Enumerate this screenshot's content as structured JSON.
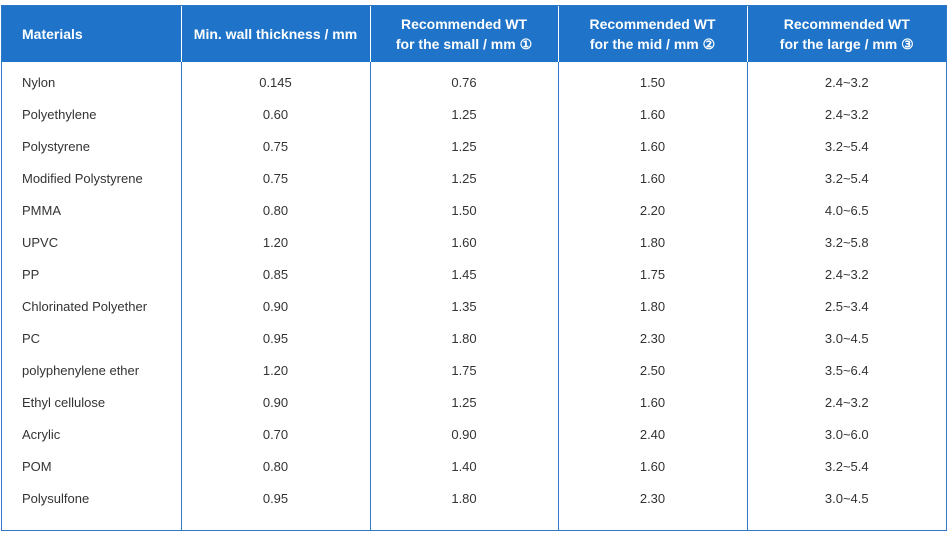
{
  "table": {
    "headers": [
      [
        "Materials"
      ],
      [
        "Min. wall thickness / mm"
      ],
      [
        "Recommended WT",
        "for the small / mm ①"
      ],
      [
        "Recommended WT",
        "for the mid / mm ②"
      ],
      [
        "Recommended WT",
        "for the large / mm ③"
      ]
    ],
    "rows": [
      [
        "Nylon",
        "0.145",
        "0.76",
        "1.50",
        "2.4~3.2"
      ],
      [
        "Polyethylene",
        "0.60",
        "1.25",
        "1.60",
        "2.4~3.2"
      ],
      [
        "Polystyrene",
        "0.75",
        "1.25",
        "1.60",
        "3.2~5.4"
      ],
      [
        "Modified Polystyrene",
        "0.75",
        "1.25",
        "1.60",
        "3.2~5.4"
      ],
      [
        "PMMA",
        "0.80",
        "1.50",
        "2.20",
        "4.0~6.5"
      ],
      [
        "UPVC",
        "1.20",
        "1.60",
        "1.80",
        "3.2~5.8"
      ],
      [
        "PP",
        "0.85",
        "1.45",
        "1.75",
        "2.4~3.2"
      ],
      [
        "Chlorinated Polyether",
        "0.90",
        "1.35",
        "1.80",
        "2.5~3.4"
      ],
      [
        "PC",
        "0.95",
        "1.80",
        "2.30",
        "3.0~4.5"
      ],
      [
        "polyphenylene ether",
        "1.20",
        "1.75",
        "2.50",
        "3.5~6.4"
      ],
      [
        "Ethyl cellulose",
        "0.90",
        "1.25",
        "1.60",
        "2.4~3.2"
      ],
      [
        "Acrylic",
        "0.70",
        "0.90",
        "2.40",
        "3.0~6.0"
      ],
      [
        "POM",
        "0.80",
        "1.40",
        "1.60",
        "3.2~5.4"
      ],
      [
        "Polysulfone",
        "0.95",
        "1.80",
        "2.30",
        "3.0~4.5"
      ]
    ]
  }
}
